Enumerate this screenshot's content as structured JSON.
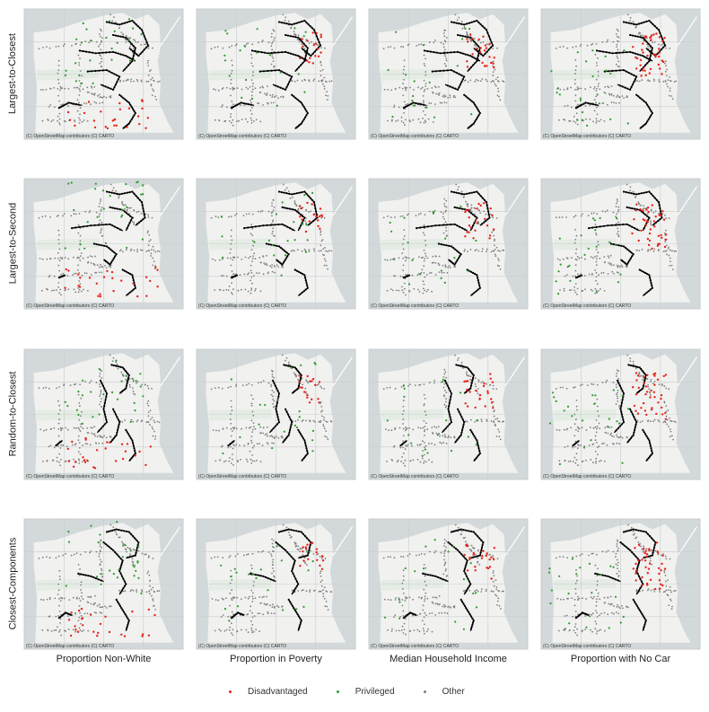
{
  "chart_data": {
    "type": "scatter",
    "rows": [
      "Largest-to-Closest",
      "Largest-to-Second",
      "Random-to-Closest",
      "Closest-Components"
    ],
    "columns": [
      "Proportion Non-White",
      "Proportion in Poverty",
      "Median Household Income",
      "Proportion with No Car"
    ],
    "attribution": "(C) OpenStreetMap contributors (C) CARTO",
    "legend": [
      {
        "name": "Disadvantaged",
        "color": "#e8231a"
      },
      {
        "name": "Privileged",
        "color": "#2e9a2e"
      },
      {
        "name": "Other",
        "color": "#808080"
      }
    ],
    "legend_position": "bottom-center",
    "colors": {
      "map_background": "#d3d9da",
      "land": "#f1f1ef",
      "route": "#000000"
    }
  }
}
